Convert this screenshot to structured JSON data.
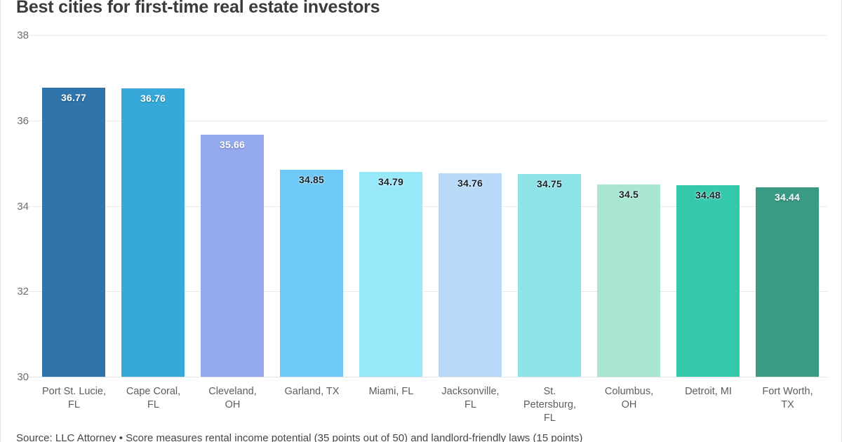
{
  "title": "Best cities for first-time real estate investors",
  "source_note": "Source: LLC Attorney • Score measures rental income potential (35 points out of 50) and landlord-friendly laws (15 points)",
  "colors": {
    "background": "#ffffff",
    "card_border": "#e3e3e3",
    "gridline": "#ebebeb",
    "title": "#3b3b3b",
    "axis_tick_label": "#6e6e6e",
    "category_label": "#5d5d5d",
    "source_text": "#454545"
  },
  "chart_data": {
    "type": "bar",
    "title": "Best cities for first-time real estate investors",
    "categories": [
      "Port St. Lucie,\nFL",
      "Cape Coral,\nFL",
      "Cleveland,\nOH",
      "Garland, TX",
      "Miami, FL",
      "Jacksonville,\nFL",
      "St.\nPetersburg,\nFL",
      "Columbus,\nOH",
      "Detroit, MI",
      "Fort Worth,\nTX"
    ],
    "values": [
      36.77,
      36.76,
      35.66,
      34.85,
      34.79,
      34.76,
      34.75,
      34.5,
      34.48,
      34.44
    ],
    "display_values": [
      "36.77",
      "36.76",
      "35.66",
      "34.85",
      "34.79",
      "34.76",
      "34.75",
      "34.5",
      "34.48",
      "34.44"
    ],
    "bar_colors": [
      "#2f74ab",
      "#36a9d9",
      "#95a9ee",
      "#6ec9f6",
      "#97e8f8",
      "#b9d9f8",
      "#8de3e6",
      "#a8e6d2",
      "#35c9ac",
      "#3a9b85"
    ],
    "value_label_colors": [
      "#ffffff",
      "#ffffff",
      "#ffffff",
      "#15212b",
      "#15212b",
      "#15212b",
      "#15212b",
      "#15212b",
      "#15212b",
      "#ffffff"
    ],
    "xlabel": "",
    "ylabel": "",
    "ylim": [
      30,
      38
    ],
    "yticks": [
      38,
      36,
      34,
      32,
      30
    ],
    "grid": "horizontal",
    "legend": "none",
    "value_labels_position": "inside-top"
  }
}
